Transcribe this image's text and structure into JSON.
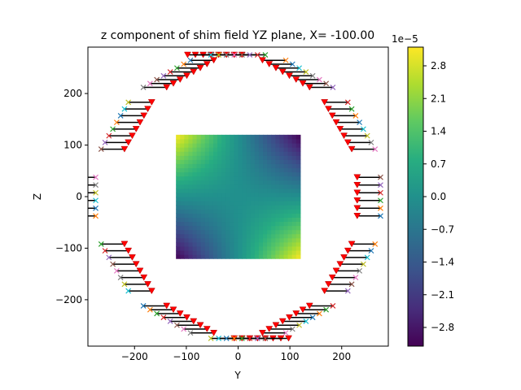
{
  "chart_data": {
    "type": "heatmap",
    "title": "z component of shim field YZ plane, X= -100.00",
    "xlabel": "Y",
    "ylabel": "Z",
    "xlim": [
      -290,
      290
    ],
    "ylim": [
      -290,
      290
    ],
    "xticks": [
      -200,
      -100,
      0,
      100,
      200
    ],
    "yticks": [
      -200,
      -100,
      0,
      100,
      200
    ],
    "xtick_labels": [
      "−200",
      "−100",
      "0",
      "100",
      "200"
    ],
    "ytick_labels": [
      "−200",
      "−100",
      "0",
      "100",
      "200"
    ],
    "heatmap": {
      "y_range": [
        -120,
        120
      ],
      "z_range": [
        -120,
        120
      ],
      "description_of_field": "saddle pattern, positive at top-left and bottom-right, negative at top-right and bottom-left"
    },
    "colorbar": {
      "colormap": "viridis",
      "min": -3.2e-05,
      "max": 3.2e-05,
      "ticks": [
        2.8,
        2.1,
        1.4,
        0.7,
        0.0,
        -0.7,
        -1.4,
        -2.1,
        -2.8
      ],
      "tick_labels": [
        "2.8",
        "2.1",
        "1.4",
        "0.7",
        "0.0",
        "−0.7",
        "−1.4",
        "−2.1",
        "−2.8"
      ],
      "exponent_label": "1e−5"
    },
    "coil_groups": [
      {
        "center_angle_deg": 0,
        "count": 6,
        "direction": "in"
      },
      {
        "center_angle_deg": 30,
        "count": 8,
        "direction": "in"
      },
      {
        "center_angle_deg": 60,
        "count": 8,
        "direction": "in"
      },
      {
        "center_angle_deg": 90,
        "count": 8,
        "direction": "in"
      },
      {
        "center_angle_deg": 120,
        "count": 8,
        "direction": "in"
      },
      {
        "center_angle_deg": 150,
        "count": 8,
        "direction": "in"
      },
      {
        "center_angle_deg": 180,
        "count": 6,
        "direction": "out"
      },
      {
        "center_angle_deg": 210,
        "count": 8,
        "direction": "in"
      },
      {
        "center_angle_deg": 240,
        "count": 8,
        "direction": "in"
      },
      {
        "center_angle_deg": 270,
        "count": 8,
        "direction": "in"
      },
      {
        "center_angle_deg": 300,
        "count": 8,
        "direction": "in"
      },
      {
        "center_angle_deg": 330,
        "count": 8,
        "direction": "in"
      }
    ],
    "coil_radius_outer": 275,
    "marker_colors": [
      "#1f77b4",
      "#ff7f0e",
      "#2ca02c",
      "#d62728",
      "#9467bd",
      "#8c564b",
      "#e377c2",
      "#7f7f7f",
      "#bcbd22",
      "#17becf"
    ],
    "start_marker_color": "#ff0000",
    "wire_color": "#000000"
  }
}
